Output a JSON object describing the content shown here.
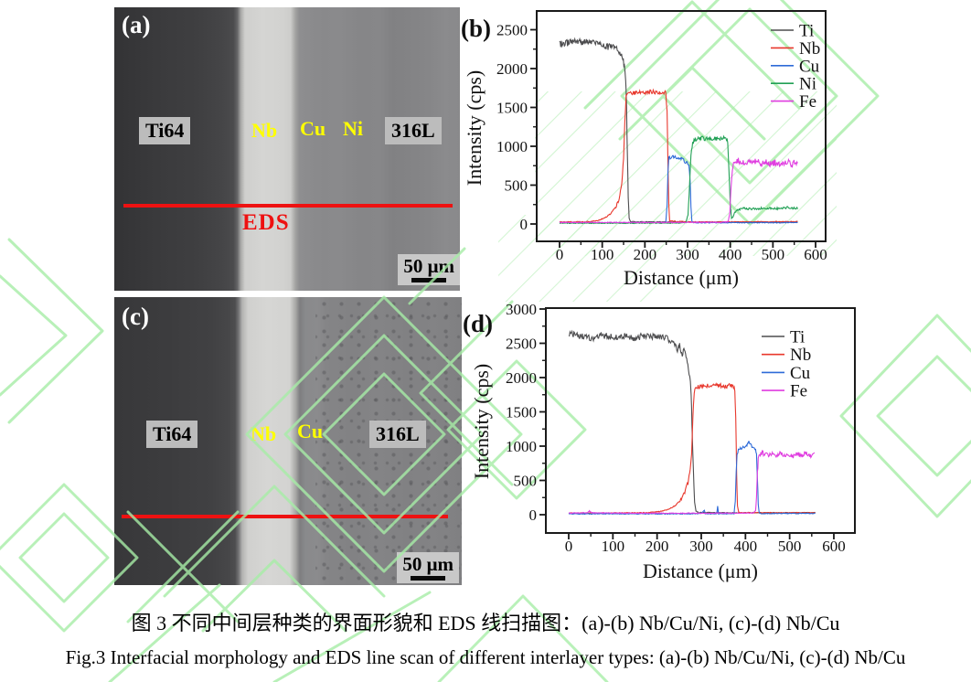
{
  "figure": {
    "caption_zh": "图 3 不同中间层种类的界面形貌和 EDS 线扫描图：(a)-(b) Nb/Cu/Ni, (c)-(d) Nb/Cu",
    "caption_en": "Fig.3 Interfacial morphology and EDS line scan of different interlayer types: (a)-(b) Nb/Cu/Ni, (c)-(d) Nb/Cu"
  },
  "panels": {
    "a": {
      "tag": "(a)",
      "region_labels": [
        "Ti64",
        "Nb",
        "Cu",
        "Ni",
        "316L"
      ],
      "eds_label": "EDS",
      "scale_label": "50 μm"
    },
    "c": {
      "tag": "(c)",
      "region_labels": [
        "Ti64",
        "Nb",
        "Cu",
        "316L"
      ],
      "scale_label": "50 μm"
    }
  },
  "colors": {
    "eds_line": "#ee1111",
    "layer_label_yellow": "#ffff00",
    "watermark_green": "#a7eda7",
    "chip_background": "#bcbcbc",
    "ti": "#4d4d4f",
    "nb": "#e8382d",
    "cu": "#2e6bd8",
    "ni": "#21a055",
    "fe": "#e03de0"
  },
  "chart_data": [
    {
      "id": "chart-b",
      "type": "line",
      "tag": "(b)",
      "xlabel": "Distance (μm)",
      "ylabel": "Intensity (cps)",
      "xlim": [
        0,
        600
      ],
      "ylim": [
        0,
        2500
      ],
      "x_tick_step": 100,
      "y_tick_step": 500,
      "x_minor_step": 50,
      "y_minor_step": 250,
      "grid": false,
      "legend_position": "inside-top-right",
      "series": [
        {
          "name": "Ti",
          "color": "#4d4d4f",
          "noise": 45,
          "points": [
            [
              0,
              2310
            ],
            [
              20,
              2330
            ],
            [
              40,
              2345
            ],
            [
              60,
              2340
            ],
            [
              80,
              2330
            ],
            [
              100,
              2295
            ],
            [
              115,
              2280
            ],
            [
              128,
              2270
            ],
            [
              138,
              2240
            ],
            [
              144,
              2180
            ],
            [
              148,
              2120
            ],
            [
              152,
              2040
            ],
            [
              155,
              1880
            ],
            [
              157,
              1500
            ],
            [
              159,
              900
            ],
            [
              161,
              350
            ],
            [
              163,
              80
            ],
            [
              166,
              30
            ],
            [
              250,
              25
            ],
            [
              400,
              24
            ],
            [
              558,
              25
            ]
          ]
        },
        {
          "name": "Nb",
          "color": "#e8382d",
          "noise": 26,
          "points": [
            [
              0,
              26
            ],
            [
              60,
              28
            ],
            [
              88,
              40
            ],
            [
              105,
              75
            ],
            [
              120,
              130
            ],
            [
              132,
              220
            ],
            [
              140,
              330
            ],
            [
              146,
              520
            ],
            [
              150,
              850
            ],
            [
              153,
              1300
            ],
            [
              156,
              1640
            ],
            [
              160,
              1680
            ],
            [
              185,
              1690
            ],
            [
              215,
              1700
            ],
            [
              240,
              1685
            ],
            [
              249,
              1690
            ],
            [
              252,
              1450
            ],
            [
              254,
              800
            ],
            [
              256,
              250
            ],
            [
              258,
              40
            ],
            [
              300,
              26
            ],
            [
              450,
              28
            ],
            [
              558,
              30
            ]
          ]
        },
        {
          "name": "Cu",
          "color": "#2e6bd8",
          "noise": 22,
          "points": [
            [
              0,
              15
            ],
            [
              120,
              15
            ],
            [
              230,
              16
            ],
            [
              249,
              18
            ],
            [
              252,
              250
            ],
            [
              254,
              650
            ],
            [
              256,
              845
            ],
            [
              262,
              868
            ],
            [
              272,
              860
            ],
            [
              282,
              845
            ],
            [
              292,
              815
            ],
            [
              299,
              780
            ],
            [
              303,
              745
            ],
            [
              306,
              560
            ],
            [
              308,
              220
            ],
            [
              310,
              40
            ],
            [
              313,
              16
            ],
            [
              420,
              17
            ],
            [
              558,
              18
            ]
          ]
        },
        {
          "name": "Ni",
          "color": "#21a055",
          "noise": 28,
          "points": [
            [
              0,
              10
            ],
            [
              160,
              11
            ],
            [
              280,
              13
            ],
            [
              296,
              18
            ],
            [
              301,
              120
            ],
            [
              305,
              520
            ],
            [
              308,
              880
            ],
            [
              312,
              1040
            ],
            [
              318,
              1085
            ],
            [
              335,
              1100
            ],
            [
              352,
              1088
            ],
            [
              368,
              1102
            ],
            [
              382,
              1092
            ],
            [
              390,
              1115
            ],
            [
              394,
              1060
            ],
            [
              397,
              700
            ],
            [
              400,
              250
            ],
            [
              403,
              70
            ],
            [
              406,
              90
            ],
            [
              411,
              150
            ],
            [
              418,
              185
            ],
            [
              428,
              200
            ],
            [
              450,
              196
            ],
            [
              480,
              205
            ],
            [
              510,
              198
            ],
            [
              535,
              212
            ],
            [
              558,
              200
            ]
          ]
        },
        {
          "name": "Fe",
          "color": "#e03de0",
          "noise": 40,
          "points": [
            [
              0,
              20
            ],
            [
              120,
              20
            ],
            [
              240,
              19
            ],
            [
              330,
              21
            ],
            [
              385,
              22
            ],
            [
              395,
              30
            ],
            [
              399,
              140
            ],
            [
              402,
              480
            ],
            [
              405,
              720
            ],
            [
              409,
              810
            ],
            [
              416,
              822
            ],
            [
              426,
              792
            ],
            [
              436,
              806
            ],
            [
              448,
              778
            ],
            [
              460,
              812
            ],
            [
              472,
              772
            ],
            [
              484,
              800
            ],
            [
              496,
              770
            ],
            [
              508,
              796
            ],
            [
              520,
              772
            ],
            [
              532,
              806
            ],
            [
              544,
              760
            ],
            [
              552,
              800
            ],
            [
              558,
              785
            ]
          ]
        }
      ]
    },
    {
      "id": "chart-d",
      "type": "line",
      "tag": "(d)",
      "xlabel": "Distance (μm)",
      "ylabel": "Intensity (cps)",
      "xlim": [
        0,
        600
      ],
      "ylim": [
        0,
        3000
      ],
      "x_tick_step": 100,
      "y_tick_step": 500,
      "x_minor_step": 50,
      "y_minor_step": 250,
      "grid": false,
      "legend_position": "inside-top-right",
      "series": [
        {
          "name": "Ti",
          "color": "#4d4d4f",
          "noise": 48,
          "points": [
            [
              0,
              2640
            ],
            [
              25,
              2600
            ],
            [
              50,
              2575
            ],
            [
              75,
              2615
            ],
            [
              100,
              2590
            ],
            [
              125,
              2605
            ],
            [
              150,
              2580
            ],
            [
              175,
              2615
            ],
            [
              195,
              2590
            ],
            [
              210,
              2600
            ],
            [
              222,
              2565
            ],
            [
              232,
              2540
            ],
            [
              240,
              2470
            ],
            [
              246,
              2400
            ],
            [
              251,
              2480
            ],
            [
              257,
              2320
            ],
            [
              262,
              2420
            ],
            [
              267,
              2270
            ],
            [
              271,
              2150
            ],
            [
              274,
              2020
            ],
            [
              277,
              1800
            ],
            [
              279,
              1300
            ],
            [
              282,
              700
            ],
            [
              285,
              180
            ],
            [
              288,
              50
            ],
            [
              295,
              32
            ],
            [
              420,
              28
            ],
            [
              558,
              30
            ]
          ]
        },
        {
          "name": "Nb",
          "color": "#e8382d",
          "noise": 30,
          "points": [
            [
              0,
              25
            ],
            [
              110,
              26
            ],
            [
              180,
              30
            ],
            [
              208,
              48
            ],
            [
              228,
              85
            ],
            [
              243,
              140
            ],
            [
              255,
              230
            ],
            [
              264,
              350
            ],
            [
              270,
              470
            ],
            [
              275,
              640
            ],
            [
              278,
              900
            ],
            [
              281,
              1400
            ],
            [
              284,
              1800
            ],
            [
              287,
              1865
            ],
            [
              302,
              1872
            ],
            [
              320,
              1882
            ],
            [
              338,
              1892
            ],
            [
              352,
              1868
            ],
            [
              365,
              1885
            ],
            [
              373,
              1862
            ],
            [
              376,
              1820
            ],
            [
              378,
              1400
            ],
            [
              380,
              600
            ],
            [
              382,
              120
            ],
            [
              385,
              30
            ],
            [
              470,
              28
            ],
            [
              558,
              29
            ]
          ]
        },
        {
          "name": "Cu",
          "color": "#2e6bd8",
          "noise": 20,
          "points": [
            [
              0,
              12
            ],
            [
              150,
              13
            ],
            [
              298,
              14
            ],
            [
              307,
              60
            ],
            [
              309,
              14
            ],
            [
              335,
              14
            ],
            [
              337,
              120
            ],
            [
              339,
              14
            ],
            [
              374,
              15
            ],
            [
              377,
              200
            ],
            [
              379,
              620
            ],
            [
              381,
              880
            ],
            [
              384,
              952
            ],
            [
              390,
              968
            ],
            [
              396,
              985
            ],
            [
              402,
              1005
            ],
            [
              407,
              1058
            ],
            [
              411,
              1035
            ],
            [
              416,
              988
            ],
            [
              420,
              968
            ],
            [
              423,
              945
            ],
            [
              425,
              880
            ],
            [
              427,
              500
            ],
            [
              429,
              150
            ],
            [
              431,
              30
            ],
            [
              434,
              16
            ],
            [
              500,
              18
            ],
            [
              558,
              18
            ]
          ]
        },
        {
          "name": "Fe",
          "color": "#e03de0",
          "noise": 36,
          "points": [
            [
              0,
              22
            ],
            [
              42,
              30
            ],
            [
              47,
              55
            ],
            [
              52,
              28
            ],
            [
              120,
              22
            ],
            [
              230,
              21
            ],
            [
              330,
              22
            ],
            [
              405,
              24
            ],
            [
              418,
              26
            ],
            [
              423,
              60
            ],
            [
              425,
              250
            ],
            [
              427,
              600
            ],
            [
              429,
              820
            ],
            [
              432,
              880
            ],
            [
              438,
              902
            ],
            [
              448,
              868
            ],
            [
              458,
              892
            ],
            [
              468,
              855
            ],
            [
              478,
              885
            ],
            [
              488,
              858
            ],
            [
              498,
              882
            ],
            [
              508,
              856
            ],
            [
              518,
              892
            ],
            [
              528,
              862
            ],
            [
              538,
              896
            ],
            [
              548,
              868
            ],
            [
              556,
              898
            ]
          ]
        }
      ]
    }
  ]
}
